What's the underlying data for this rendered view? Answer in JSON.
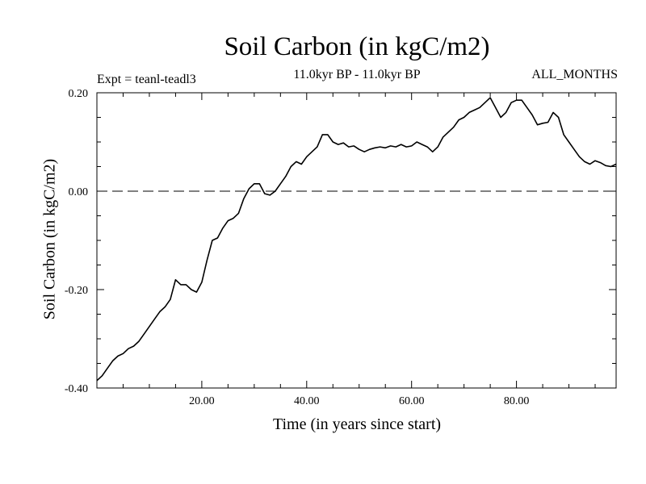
{
  "chart_data": {
    "type": "line",
    "title": "Soil Carbon (in kgC/m2)",
    "subtitle": "11.0kyr BP - 11.0kyr BP",
    "experiment_label": "Expt = teanl-teadl3",
    "period_label": "ALL_MONTHS",
    "xlabel": "Time (in years since start)",
    "ylabel": "Soil Carbon (in kgC/m2)",
    "xlim": [
      0,
      99
    ],
    "ylim": [
      -0.4,
      0.2
    ],
    "xticks": [
      20,
      40,
      60,
      80
    ],
    "xtick_labels": [
      "20.00",
      "40.00",
      "60.00",
      "80.00"
    ],
    "yticks": [
      -0.4,
      -0.2,
      0.0,
      0.2
    ],
    "ytick_labels": [
      "-0.40",
      "-0.20",
      "0.00",
      "0.20"
    ],
    "zero_line": "dashed",
    "grid": false,
    "series": [
      {
        "color": "#000000",
        "x": [
          0,
          1,
          2,
          3,
          4,
          5,
          6,
          7,
          8,
          9,
          10,
          11,
          12,
          13,
          14,
          15,
          16,
          17,
          18,
          19,
          20,
          21,
          22,
          23,
          24,
          25,
          26,
          27,
          28,
          29,
          30,
          31,
          32,
          33,
          34,
          35,
          36,
          37,
          38,
          39,
          40,
          41,
          42,
          43,
          44,
          45,
          46,
          47,
          48,
          49,
          50,
          51,
          52,
          53,
          54,
          55,
          56,
          57,
          58,
          59,
          60,
          61,
          62,
          63,
          64,
          65,
          66,
          67,
          68,
          69,
          70,
          71,
          72,
          73,
          74,
          75,
          76,
          77,
          78,
          79,
          80,
          81,
          82,
          83,
          84,
          85,
          86,
          87,
          88,
          89,
          90,
          91,
          92,
          93,
          94,
          95,
          96,
          97,
          98,
          99
        ],
        "values": [
          -0.385,
          -0.375,
          -0.36,
          -0.345,
          -0.335,
          -0.33,
          -0.32,
          -0.315,
          -0.305,
          -0.29,
          -0.275,
          -0.26,
          -0.245,
          -0.235,
          -0.22,
          -0.18,
          -0.19,
          -0.19,
          -0.2,
          -0.205,
          -0.185,
          -0.14,
          -0.1,
          -0.095,
          -0.075,
          -0.06,
          -0.055,
          -0.045,
          -0.015,
          0.005,
          0.015,
          0.015,
          -0.005,
          -0.008,
          0.0,
          0.015,
          0.03,
          0.05,
          0.06,
          0.055,
          0.07,
          0.08,
          0.09,
          0.115,
          0.115,
          0.1,
          0.095,
          0.098,
          0.09,
          0.092,
          0.085,
          0.08,
          0.085,
          0.088,
          0.09,
          0.088,
          0.092,
          0.09,
          0.095,
          0.09,
          0.092,
          0.1,
          0.095,
          0.09,
          0.08,
          0.09,
          0.11,
          0.12,
          0.13,
          0.145,
          0.15,
          0.16,
          0.165,
          0.17,
          0.18,
          0.19,
          0.17,
          0.15,
          0.16,
          0.18,
          0.185,
          0.185,
          0.17,
          0.155,
          0.135,
          0.138,
          0.14,
          0.16,
          0.15,
          0.115,
          0.1,
          0.085,
          0.07,
          0.06,
          0.055,
          0.062,
          0.058,
          0.052,
          0.05,
          0.055
        ]
      }
    ]
  }
}
